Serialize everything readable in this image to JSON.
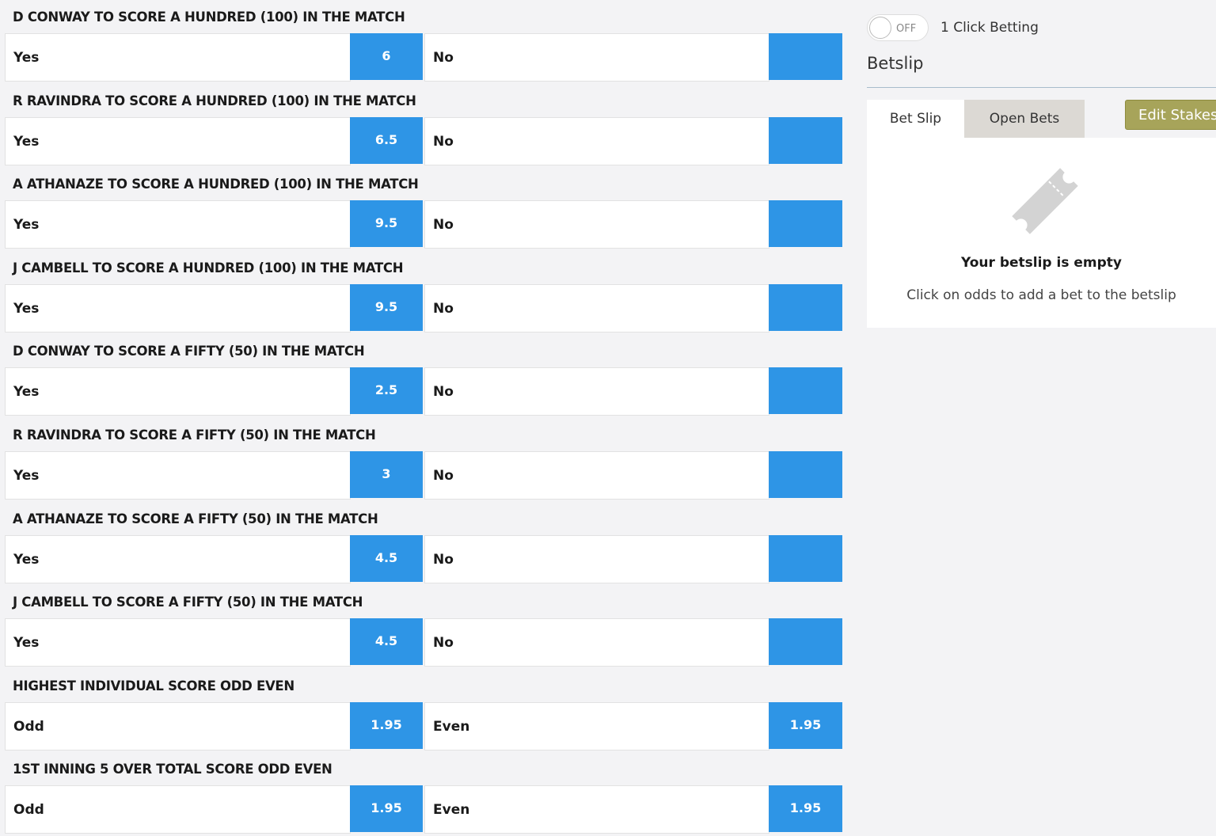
{
  "markets": [
    {
      "title": "D CONWAY TO SCORE A HUNDRED (100) IN THE MATCH",
      "left_label": "Yes",
      "left_odds": "6",
      "right_label": "No",
      "right_odds": ""
    },
    {
      "title": "R RAVINDRA TO SCORE A HUNDRED (100) IN THE MATCH",
      "left_label": "Yes",
      "left_odds": "6.5",
      "right_label": "No",
      "right_odds": ""
    },
    {
      "title": "A ATHANAZE TO SCORE A HUNDRED (100) IN THE MATCH",
      "left_label": "Yes",
      "left_odds": "9.5",
      "right_label": "No",
      "right_odds": ""
    },
    {
      "title": "J CAMBELL TO SCORE A HUNDRED (100) IN THE MATCH",
      "left_label": "Yes",
      "left_odds": "9.5",
      "right_label": "No",
      "right_odds": ""
    },
    {
      "title": "D CONWAY TO SCORE A FIFTY (50) IN THE MATCH",
      "left_label": "Yes",
      "left_odds": "2.5",
      "right_label": "No",
      "right_odds": ""
    },
    {
      "title": "R RAVINDRA TO SCORE A FIFTY (50) IN THE MATCH",
      "left_label": "Yes",
      "left_odds": "3",
      "right_label": "No",
      "right_odds": ""
    },
    {
      "title": "A ATHANAZE TO SCORE A FIFTY (50) IN THE MATCH",
      "left_label": "Yes",
      "left_odds": "4.5",
      "right_label": "No",
      "right_odds": ""
    },
    {
      "title": "J CAMBELL TO SCORE A FIFTY (50) IN THE MATCH",
      "left_label": "Yes",
      "left_odds": "4.5",
      "right_label": "No",
      "right_odds": ""
    },
    {
      "title": "HIGHEST INDIVIDUAL SCORE ODD EVEN",
      "left_label": "Odd",
      "left_odds": "1.95",
      "right_label": "Even",
      "right_odds": "1.95"
    },
    {
      "title": "1ST INNING 5 OVER TOTAL SCORE ODD EVEN",
      "left_label": "Odd",
      "left_odds": "1.95",
      "right_label": "Even",
      "right_odds": "1.95"
    }
  ],
  "sidebar": {
    "toggle_state": "OFF",
    "one_click_label": "1 Click Betting",
    "title": "Betslip",
    "tabs": [
      "Bet Slip",
      "Open Bets"
    ],
    "edit_stakes": "Edit Stakes",
    "empty_title": "Your betslip is empty",
    "empty_text": "Click on odds to add a bet to the betslip",
    "icon": "ticket-icon"
  },
  "colors": {
    "odds_blue": "#2e95e6",
    "edit_stakes": "#a7a45a"
  }
}
